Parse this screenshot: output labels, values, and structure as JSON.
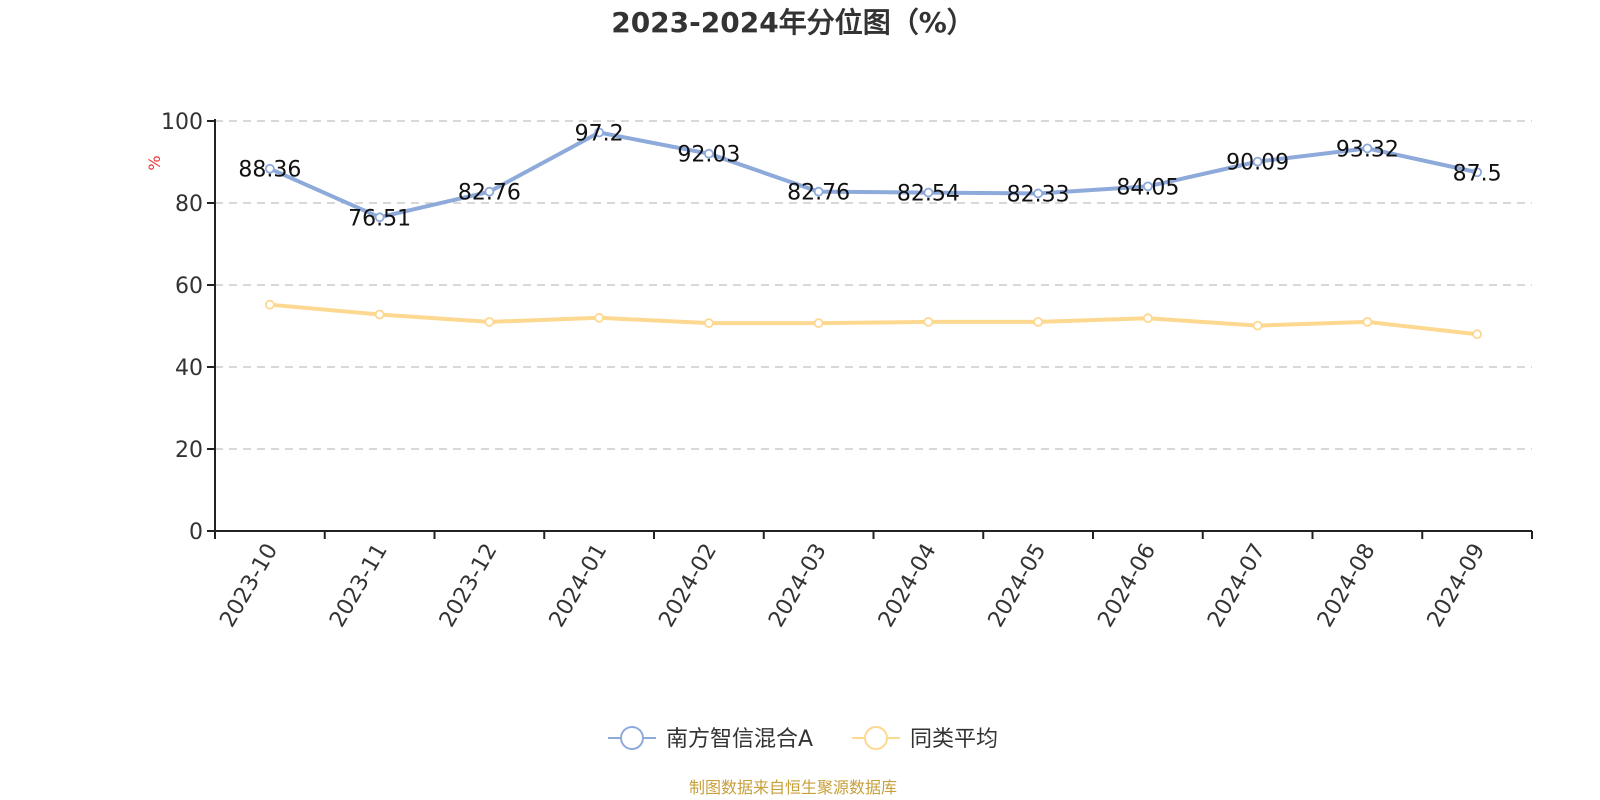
{
  "chart_data": {
    "type": "line",
    "title": "2023-2024年分位图（%）",
    "ylabel": "%",
    "xlabel": "",
    "categories": [
      "2023-10",
      "2023-11",
      "2023-12",
      "2024-01",
      "2024-02",
      "2024-03",
      "2024-04",
      "2024-05",
      "2024-06",
      "2024-07",
      "2024-08",
      "2024-09"
    ],
    "ylim": [
      0,
      100
    ],
    "yticks": [
      "0",
      "20",
      "40",
      "60",
      "80",
      "100"
    ],
    "grid": true,
    "legend_position": "bottom-center",
    "series": [
      {
        "name": "南方智信混合A",
        "color": "#8eaadb",
        "values": [
          88.36,
          76.51,
          82.76,
          97.2,
          92.03,
          82.76,
          82.54,
          82.33,
          84.05,
          90.09,
          93.32,
          87.5
        ],
        "labels": [
          "88.36",
          "76.51",
          "82.76",
          "97.2",
          "92.03",
          "82.76",
          "82.54",
          "82.33",
          "84.05",
          "90.09",
          "93.32",
          "87.5"
        ]
      },
      {
        "name": "同类平均",
        "color": "#fdd891",
        "values": [
          55.2,
          52.8,
          51.0,
          52.0,
          50.7,
          50.7,
          51.0,
          51.0,
          51.9,
          50.1,
          51.0,
          48.0
        ]
      }
    ]
  },
  "source": "制图数据来自恒生聚源数据库",
  "colors": {
    "ylabel": "#ee3333",
    "source": "#c8a03c"
  }
}
